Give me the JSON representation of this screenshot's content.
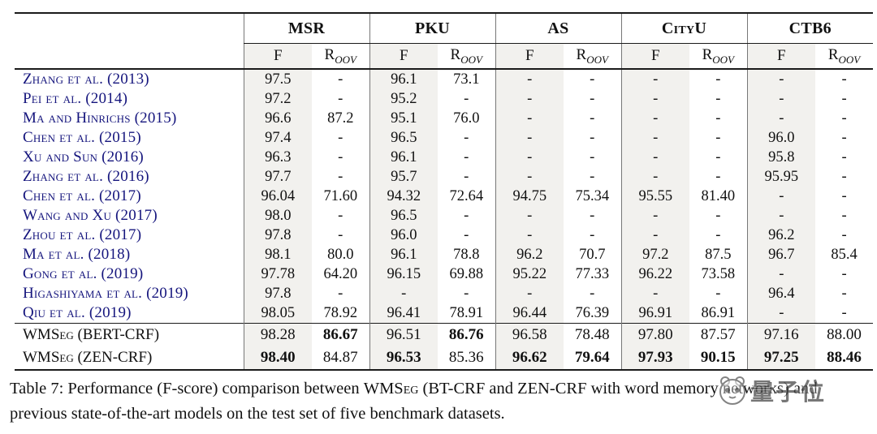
{
  "table": {
    "groups": [
      "MSR",
      "PKU",
      "AS",
      "CityU",
      "CTB6"
    ],
    "subheaders": {
      "f": "F",
      "r_base": "R",
      "r_sub": "OOV"
    },
    "rows": [
      {
        "label": "Zhang et al. (2013)",
        "values": [
          "97.5",
          "-",
          "96.1",
          "73.1",
          "-",
          "-",
          "-",
          "-",
          "-",
          "-"
        ],
        "bold": []
      },
      {
        "label": "Pei et al. (2014)",
        "values": [
          "97.2",
          "-",
          "95.2",
          "-",
          "-",
          "-",
          "-",
          "-",
          "-",
          "-"
        ],
        "bold": []
      },
      {
        "label": "Ma and Hinrichs (2015)",
        "values": [
          "96.6",
          "87.2",
          "95.1",
          "76.0",
          "-",
          "-",
          "-",
          "-",
          "-",
          "-"
        ],
        "bold": []
      },
      {
        "label": "Chen et al. (2015)",
        "values": [
          "97.4",
          "-",
          "96.5",
          "-",
          "-",
          "-",
          "-",
          "-",
          "96.0",
          "-"
        ],
        "bold": []
      },
      {
        "label": "Xu and Sun (2016)",
        "values": [
          "96.3",
          "-",
          "96.1",
          "-",
          "-",
          "-",
          "-",
          "-",
          "95.8",
          "-"
        ],
        "bold": []
      },
      {
        "label": "Zhang et al. (2016)",
        "values": [
          "97.7",
          "-",
          "95.7",
          "-",
          "-",
          "-",
          "-",
          "-",
          "95.95",
          "-"
        ],
        "bold": []
      },
      {
        "label": "Chen et al. (2017)",
        "values": [
          "96.04",
          "71.60",
          "94.32",
          "72.64",
          "94.75",
          "75.34",
          "95.55",
          "81.40",
          "-",
          "-"
        ],
        "bold": []
      },
      {
        "label": "Wang and Xu (2017)",
        "values": [
          "98.0",
          "-",
          "96.5",
          "-",
          "-",
          "-",
          "-",
          "-",
          "-",
          "-"
        ],
        "bold": []
      },
      {
        "label": "Zhou et al. (2017)",
        "values": [
          "97.8",
          "-",
          "96.0",
          "-",
          "-",
          "-",
          "-",
          "-",
          "96.2",
          "-"
        ],
        "bold": []
      },
      {
        "label": "Ma et al. (2018)",
        "values": [
          "98.1",
          "80.0",
          "96.1",
          "78.8",
          "96.2",
          "70.7",
          "97.2",
          "87.5",
          "96.7",
          "85.4"
        ],
        "bold": []
      },
      {
        "label": "Gong et al. (2019)",
        "values": [
          "97.78",
          "64.20",
          "96.15",
          "69.88",
          "95.22",
          "77.33",
          "96.22",
          "73.58",
          "-",
          "-"
        ],
        "bold": []
      },
      {
        "label": "Higashiyama et al. (2019)",
        "values": [
          "97.8",
          "-",
          "-",
          "-",
          "-",
          "-",
          "-",
          "-",
          "96.4",
          "-"
        ],
        "bold": []
      },
      {
        "label": "Qiu et al. (2019)",
        "values": [
          "98.05",
          "78.92",
          "96.41",
          "78.91",
          "96.44",
          "76.39",
          "96.91",
          "86.91",
          "-",
          "-"
        ],
        "bold": []
      }
    ],
    "wmseg_rows": [
      {
        "label": "WMSeg (BERT-CRF)",
        "values": [
          "98.28",
          "86.67",
          "96.51",
          "86.76",
          "96.58",
          "78.48",
          "97.80",
          "87.57",
          "97.16",
          "88.00"
        ],
        "bold": [
          1,
          3
        ]
      },
      {
        "label": "WMSeg (ZEN-CRF)",
        "values": [
          "98.40",
          "84.87",
          "96.53",
          "85.36",
          "96.62",
          "79.64",
          "97.93",
          "90.15",
          "97.25",
          "88.46"
        ],
        "bold": [
          0,
          2,
          4,
          5,
          6,
          7,
          8,
          9
        ]
      }
    ]
  },
  "caption": {
    "part1": "Table 7: Performance (F-score) comparison between ",
    "model_smallcaps": "WMSeg",
    "part2": " (BT-CRF and ZEN-CRF with word memory networks) and previous state-of-the-art models on the test set of five benchmark datasets."
  },
  "watermark": {
    "text": "量子位"
  },
  "colors": {
    "citation_blue": "#15157d",
    "f_column_shade": "#f2f1ee",
    "rule": "#1a1a1a",
    "watermark_gray": "#4a4a4a"
  }
}
